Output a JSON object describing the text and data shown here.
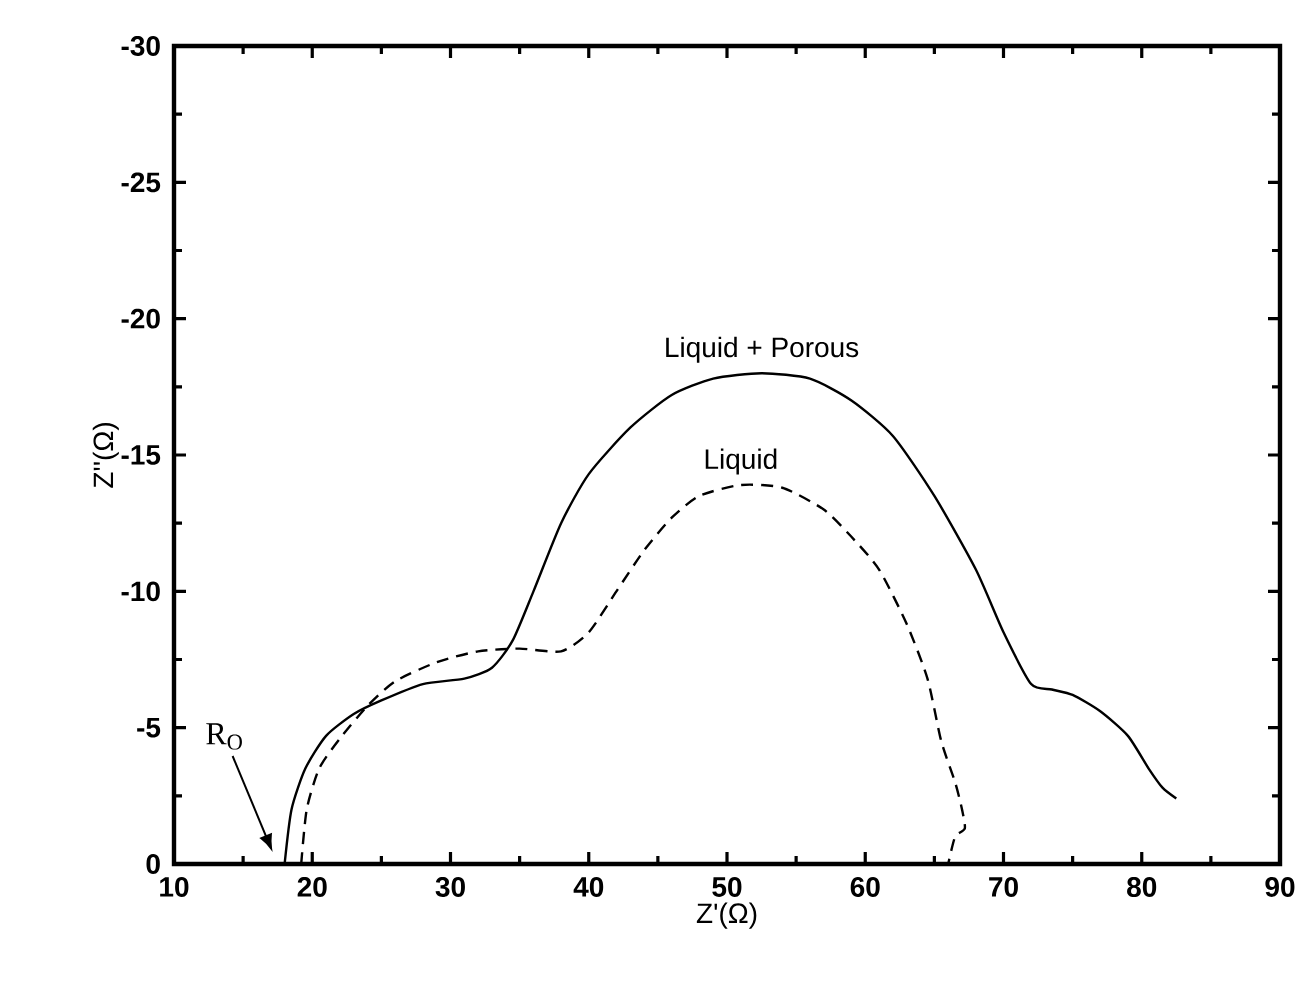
{
  "chart_data": {
    "type": "line",
    "xlabel": "Z'(Ω)",
    "ylabel": "Z''(Ω)",
    "xlim": [
      10,
      90
    ],
    "ylim": [
      0,
      -30
    ],
    "xticks": [
      10,
      20,
      30,
      40,
      50,
      60,
      70,
      80,
      90
    ],
    "yticks": [
      0,
      -5,
      -10,
      -15,
      -20,
      -25,
      -30
    ],
    "grid": false,
    "legend": false,
    "marker": "none",
    "annotations": [
      "R$_{O}$"
    ],
    "series": [
      {
        "name": "Liquid + Porous",
        "color": "#000000",
        "line_style": "solid",
        "x": [
          18.0,
          18.5,
          19.5,
          21,
          23,
          25,
          28,
          31,
          33,
          34.5,
          36,
          38,
          40,
          43,
          46,
          49,
          52.5,
          56,
          59,
          62,
          65,
          68,
          70,
          72,
          73.5,
          75,
          77,
          79,
          80.5,
          81.5,
          82.5
        ],
        "values": [
          0,
          -2,
          -3.5,
          -4.7,
          -5.5,
          -6.0,
          -6.6,
          -6.8,
          -7.2,
          -8.2,
          -10,
          -12.5,
          -14.3,
          -16,
          -17.2,
          -17.8,
          -18.0,
          -17.8,
          -17.0,
          -15.7,
          -13.5,
          -10.8,
          -8.5,
          -6.6,
          -6.4,
          -6.2,
          -5.6,
          -4.7,
          -3.5,
          -2.8,
          -2.4
        ]
      },
      {
        "name": "Liquid",
        "color": "#000000",
        "line_style": "dashed",
        "x": [
          19.2,
          19.6,
          20.5,
          22,
          24,
          26,
          29,
          32,
          35,
          38,
          40,
          42,
          44,
          46,
          48,
          51,
          54,
          57,
          59,
          61,
          63,
          64.5,
          65.5,
          66.5,
          67,
          67.2,
          66.5,
          66
        ],
        "values": [
          0,
          -2,
          -3.5,
          -4.6,
          -5.8,
          -6.7,
          -7.4,
          -7.8,
          -7.9,
          -7.8,
          -8.5,
          -10,
          -11.5,
          -12.7,
          -13.5,
          -13.9,
          -13.8,
          -13.0,
          -12.0,
          -10.8,
          -8.8,
          -6.8,
          -4.5,
          -3,
          -2,
          -1.3,
          -1.0,
          0
        ]
      }
    ]
  }
}
